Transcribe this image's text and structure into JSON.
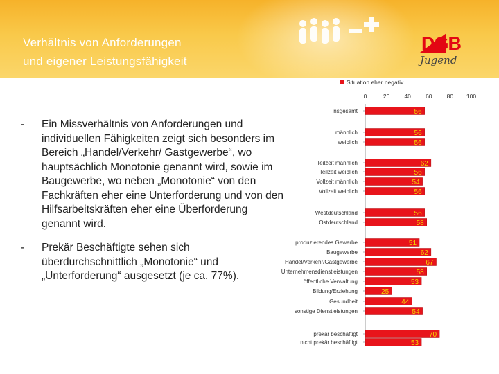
{
  "header": {
    "title_line1": "Verhältnis von Anforderungen",
    "title_line2": "und eigener Leistungsfähigkeit",
    "logo_text": "DGB",
    "logo_subtext": "Jugend",
    "colors": {
      "background": "#f7bd35",
      "title": "#ffffff",
      "logo": "#e30613"
    }
  },
  "bullets": [
    {
      "marker": "-",
      "text": "Ein Missverhältnis von Anforderungen und individuellen Fähigkeiten zeigt sich besonders im Bereich „Handel/Verkehr/ Gastgewerbe“, wo hauptsächlich Monotonie genannt wird, sowie im Baugewerbe, wo neben „Monotonie“ von den Fachkräften eher eine Unterforderung und von den Hilfsarbeitskräften eher eine Überforderung genannt wird."
    },
    {
      "marker": "-",
      "text": "Prekär Beschäftigte sehen sich überdurchschnittlich „Monotonie“ und „Unterforderung“ ausgesetzt (je ca. 77%)."
    }
  ],
  "chart_data": {
    "type": "bar",
    "orientation": "horizontal",
    "legend": "Situation eher negativ",
    "legend_position": "top",
    "bar_color": "#e8141b",
    "xlim": [
      0,
      100
    ],
    "xticks": [
      0,
      20,
      40,
      60,
      80,
      100
    ],
    "categories": [
      "insgesamt",
      "männlich",
      "weiblich",
      "Teilzeit männlich",
      "Teilzeit weiblich",
      "Vollzeit männlich",
      "Vollzeit weiblich",
      "Westdeutschland",
      "Ostdeutschland",
      "produzierendes Gewerbe",
      "Baugewerbe",
      "Handel/Verkehr/Gastgewerbe",
      "Unternehmensdienstleistungen",
      "öffentliche Verwaltung",
      "Bildung/Erziehung",
      "Gesundheit",
      "sonstige Dienstleistungen",
      "prekär beschäftigt",
      "nicht prekär beschäftigt"
    ],
    "values": [
      56,
      56,
      56,
      62,
      56,
      54,
      56,
      56,
      58,
      51,
      62,
      67,
      58,
      53,
      25,
      44,
      54,
      70,
      53
    ]
  }
}
